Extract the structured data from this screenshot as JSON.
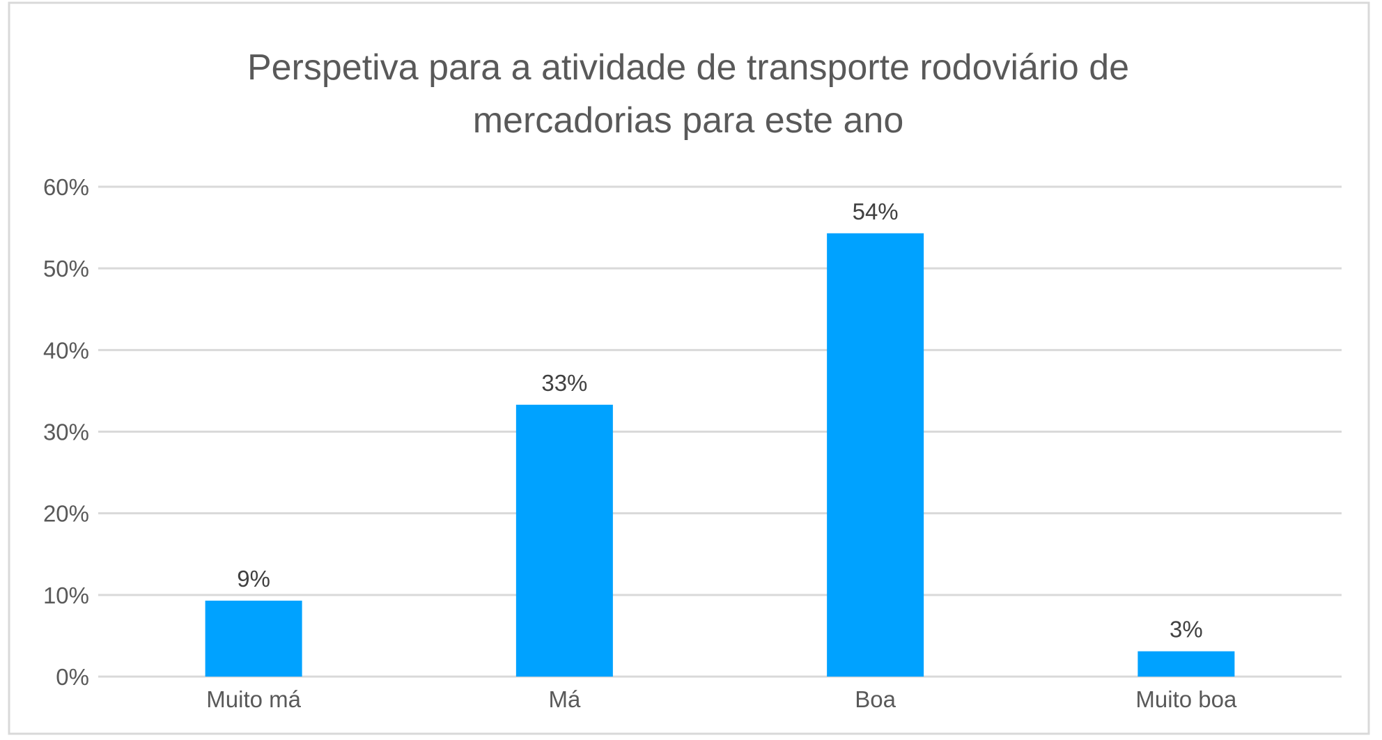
{
  "chart_data": {
    "type": "bar",
    "title": "Perspetiva para a atividade de transporte rodoviário de mercadorias para este ano",
    "title_lines": [
      "Perspetiva para a atividade de transporte rodoviário de",
      "mercadorias para este ano"
    ],
    "categories": [
      "Muito má",
      "Má",
      "Boa",
      "Muito boa"
    ],
    "values": [
      9.3,
      33.3,
      54.3,
      3.1
    ],
    "data_labels": [
      "9%",
      "33%",
      "54%",
      "3%"
    ],
    "xlabel": "",
    "ylabel": "",
    "ylim": [
      0,
      60
    ],
    "yticks": [
      0,
      10,
      20,
      30,
      40,
      50,
      60
    ],
    "ytick_labels": [
      "0%",
      "10%",
      "20%",
      "30%",
      "40%",
      "50%",
      "60%"
    ],
    "grid": true,
    "legend": "none",
    "bar_color": "#00A2FF",
    "grid_color": "#D9D9D9"
  }
}
